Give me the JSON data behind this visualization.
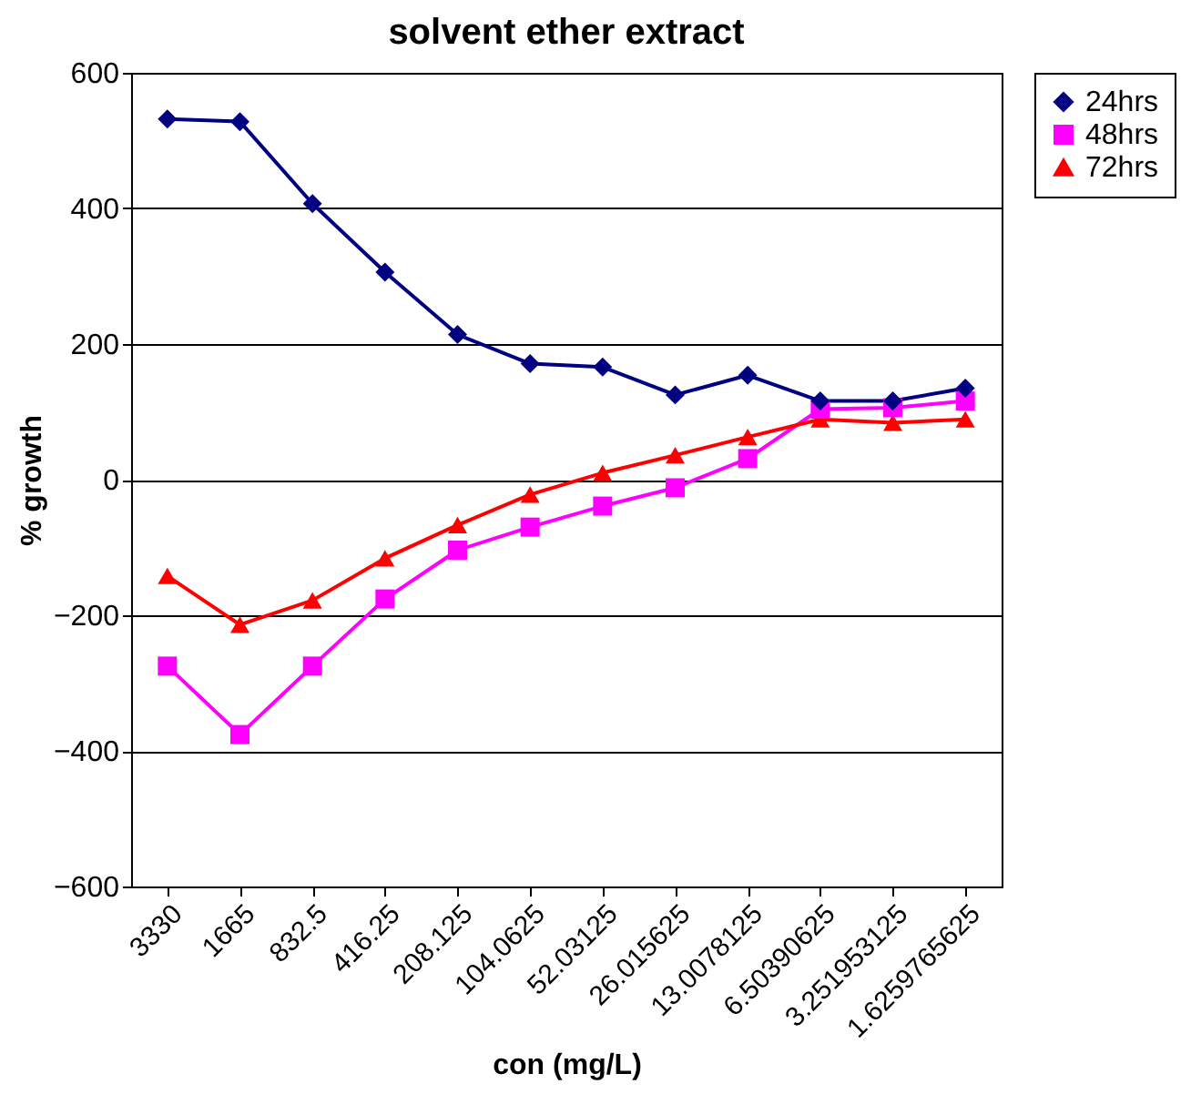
{
  "chart_data": {
    "type": "line",
    "title": "solvent ether extract",
    "xlabel": "con (mg/L)",
    "ylabel": "% growth",
    "categories": [
      "3330",
      "1665",
      "832.5",
      "416.25",
      "208.125",
      "104.0625",
      "52.03125",
      "26.015625",
      "13.0078125",
      "6.50390625",
      "3.251953125",
      "1.6259765625"
    ],
    "series": [
      {
        "name": "24hrs",
        "color": "#000080",
        "marker": "diamond",
        "values": [
          532,
          528,
          407,
          306,
          214,
          171,
          166,
          125,
          154,
          116,
          116,
          135
        ]
      },
      {
        "name": "48hrs",
        "color": "#ff00ff",
        "marker": "square",
        "values": [
          -275,
          -376,
          -275,
          -176,
          -104,
          -70,
          -39,
          -12,
          31,
          104,
          106,
          116
        ]
      },
      {
        "name": "72hrs",
        "color": "#ff0000",
        "marker": "triangle",
        "values": [
          -142,
          -214,
          -178,
          -116,
          -67,
          -22,
          10,
          36,
          63,
          89,
          84,
          89
        ]
      }
    ],
    "ylim": [
      -600,
      600
    ],
    "yticks": [
      -600,
      -400,
      -200,
      0,
      200,
      400,
      600
    ],
    "grid": "y",
    "legend": "right",
    "line_style": "solid"
  }
}
